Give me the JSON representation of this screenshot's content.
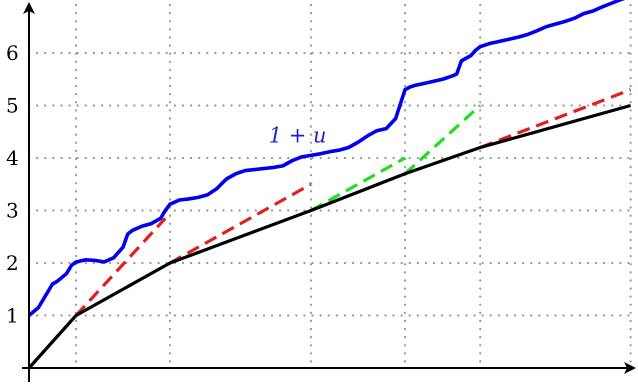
{
  "chart_data": {
    "type": "line",
    "title": "",
    "xlabel": "",
    "ylabel": "",
    "xlim": [
      0,
      6.45
    ],
    "ylim": [
      0,
      6.6
    ],
    "x_gridlines": [
      0.5,
      1.5,
      3.0,
      4.0,
      4.8,
      6.4
    ],
    "y_ticks": [
      1,
      2,
      3,
      4,
      5,
      6
    ],
    "tick_labels": [
      "1",
      "2",
      "3",
      "4",
      "5",
      "6"
    ],
    "grid": true,
    "grid_style": "dotted",
    "annotation": {
      "text": "1 + u",
      "x": 2.55,
      "y": 4.3,
      "color": "#2222cc"
    },
    "series": [
      {
        "color": "#0000ee",
        "style": "solid",
        "x": [
          0,
          0.1,
          0.2,
          0.25,
          0.3,
          0.4,
          0.45,
          0.5,
          0.6,
          0.7,
          0.8,
          0.9,
          1.0,
          1.05,
          1.1,
          1.2,
          1.3,
          1.4,
          1.45,
          1.5,
          1.6,
          1.7,
          1.8,
          1.9,
          2.0,
          2.1,
          2.2,
          2.3,
          2.4,
          2.5,
          2.6,
          2.7,
          2.8,
          2.9,
          3.0,
          3.1,
          3.2,
          3.3,
          3.4,
          3.5,
          3.6,
          3.7,
          3.8,
          3.9,
          4.0,
          4.05,
          4.1,
          4.2,
          4.3,
          4.4,
          4.5,
          4.55,
          4.6,
          4.7,
          4.75,
          4.8,
          4.9,
          5.0,
          5.1,
          5.2,
          5.3,
          5.4,
          5.5,
          5.6,
          5.7,
          5.8,
          5.9,
          6.0,
          6.1,
          6.2,
          6.3,
          6.4,
          6.45
        ],
        "y": [
          1.0,
          1.15,
          1.45,
          1.6,
          1.65,
          1.8,
          1.95,
          2.02,
          2.06,
          2.05,
          2.02,
          2.1,
          2.3,
          2.55,
          2.62,
          2.7,
          2.75,
          2.85,
          3.0,
          3.12,
          3.2,
          3.22,
          3.25,
          3.3,
          3.42,
          3.6,
          3.7,
          3.76,
          3.78,
          3.8,
          3.82,
          3.85,
          3.95,
          4.02,
          4.05,
          4.08,
          4.12,
          4.15,
          4.2,
          4.3,
          4.42,
          4.52,
          4.56,
          4.75,
          5.3,
          5.35,
          5.38,
          5.42,
          5.46,
          5.5,
          5.56,
          5.6,
          5.85,
          5.95,
          6.05,
          6.12,
          6.18,
          6.22,
          6.26,
          6.3,
          6.35,
          6.42,
          6.5,
          6.55,
          6.6,
          6.66,
          6.75,
          6.8,
          6.88,
          6.95,
          7.02,
          7.08,
          7.1
        ]
      },
      {
        "color": "#000000",
        "style": "solid",
        "x": [
          0,
          0.5,
          1.5,
          3.0,
          4.0,
          4.8,
          6.4
        ],
        "y": [
          0,
          1.0,
          2.0,
          3.0,
          3.7,
          4.2,
          5.0
        ]
      },
      {
        "color": "#e02020",
        "style": "dashed",
        "x": [
          0.5,
          1.45
        ],
        "y": [
          1.0,
          2.85
        ]
      },
      {
        "color": "#e02020",
        "style": "dashed",
        "x": [
          1.5,
          3.0
        ],
        "y": [
          2.0,
          3.5
        ]
      },
      {
        "color": "#e02020",
        "style": "dashed",
        "x": [
          4.8,
          6.4
        ],
        "y": [
          4.2,
          5.3
        ]
      },
      {
        "color": "#22dd22",
        "style": "dashed",
        "x": [
          3.0,
          4.0
        ],
        "y": [
          3.0,
          4.0
        ]
      },
      {
        "color": "#22dd22",
        "style": "dashed",
        "x": [
          4.0,
          4.8
        ],
        "y": [
          3.7,
          5.0
        ]
      }
    ]
  }
}
